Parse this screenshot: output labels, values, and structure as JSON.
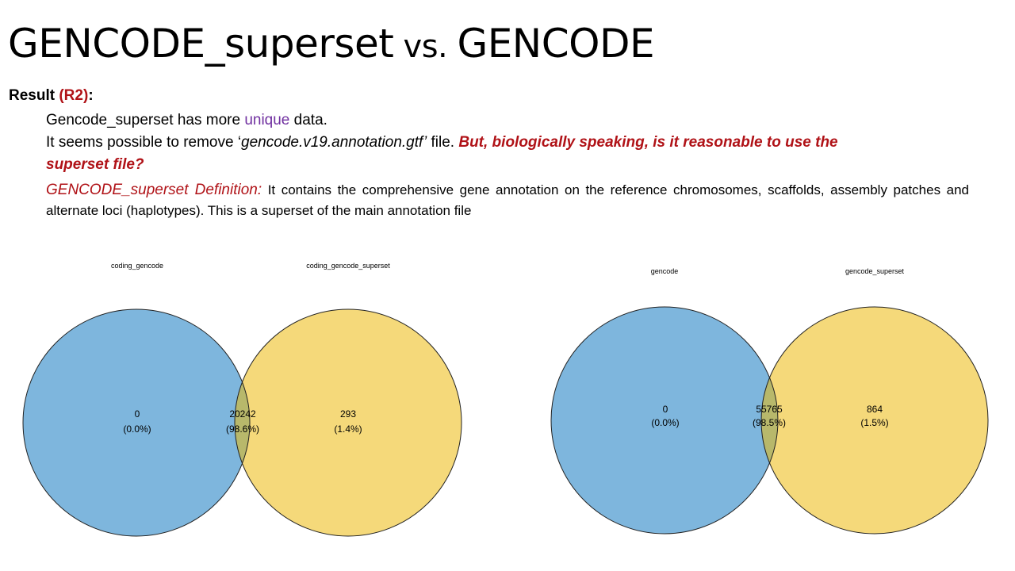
{
  "title": {
    "main": "GENCODE_superset",
    "vs": " vs. ",
    "second": "GENCODE"
  },
  "result": {
    "label": "Result ",
    "tag": "(R2)",
    "colon": ":"
  },
  "lines": {
    "l1_pre": "Gencode_superset has more ",
    "l1_unique": "unique",
    "l1_post": " data.",
    "l2_pre": "It seems possible to remove ‘",
    "l2_file": "gencode.v19.annotation.gtf’",
    "l2_mid": " file. ",
    "l2_question": "But, biologically speaking, is it reasonable to use the",
    "l3_question": "superset file?",
    "def_title": "GENCODE_superset Definition:",
    "def_text": " It contains the comprehensive gene annotation on the reference chromosomes, scaffolds, assembly patches and alternate loci (haplotypes). This is a superset of the main annotation file"
  },
  "colors": {
    "left": "#7eb6dd",
    "right": "#f5d97a",
    "overlap": "#b8b86b",
    "red": "#b01217",
    "purple": "#7030a0"
  },
  "venn1": {
    "left_label": "coding_gencode",
    "right_label": "coding_gencode_superset",
    "left_count": "0",
    "left_pct": "(0.0%)",
    "mid_count": "20242",
    "mid_pct": "(98.6%)",
    "right_count": "293",
    "right_pct": "(1.4%)"
  },
  "venn2": {
    "left_label": "gencode",
    "right_label": "gencode_superset",
    "left_count": "0",
    "left_pct": "(0.0%)",
    "mid_count": "55765",
    "mid_pct": "(98.5%)",
    "right_count": "864",
    "right_pct": "(1.5%)"
  }
}
